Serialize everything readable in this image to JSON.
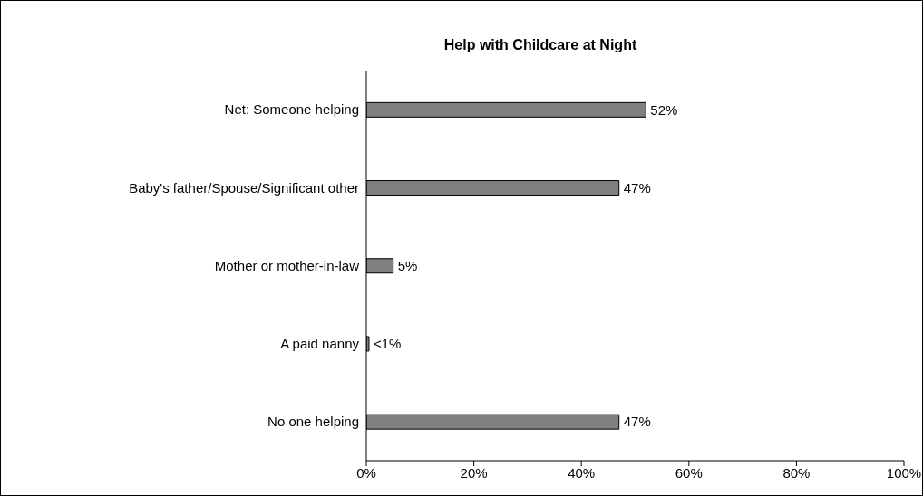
{
  "chart_data": {
    "type": "bar",
    "orientation": "horizontal",
    "title": "Help with Childcare at Night",
    "categories": [
      "Net: Someone helping",
      "Baby's father/Spouse/Significant other",
      "Mother or mother-in-law",
      "A paid nanny",
      "No one helping"
    ],
    "values": [
      52,
      47,
      5,
      0.5,
      47
    ],
    "value_labels": [
      "52%",
      "47%",
      "5%",
      "<1%",
      "47%"
    ],
    "color": "#808080",
    "xlim": [
      0,
      100
    ],
    "xticks": [
      {
        "value": 0,
        "label": "0%"
      },
      {
        "value": 20,
        "label": "20%"
      },
      {
        "value": 40,
        "label": "40%"
      },
      {
        "value": 60,
        "label": "60%"
      },
      {
        "value": 80,
        "label": "80%"
      },
      {
        "value": 100,
        "label": "100%"
      }
    ],
    "grid": false,
    "legend": false
  }
}
